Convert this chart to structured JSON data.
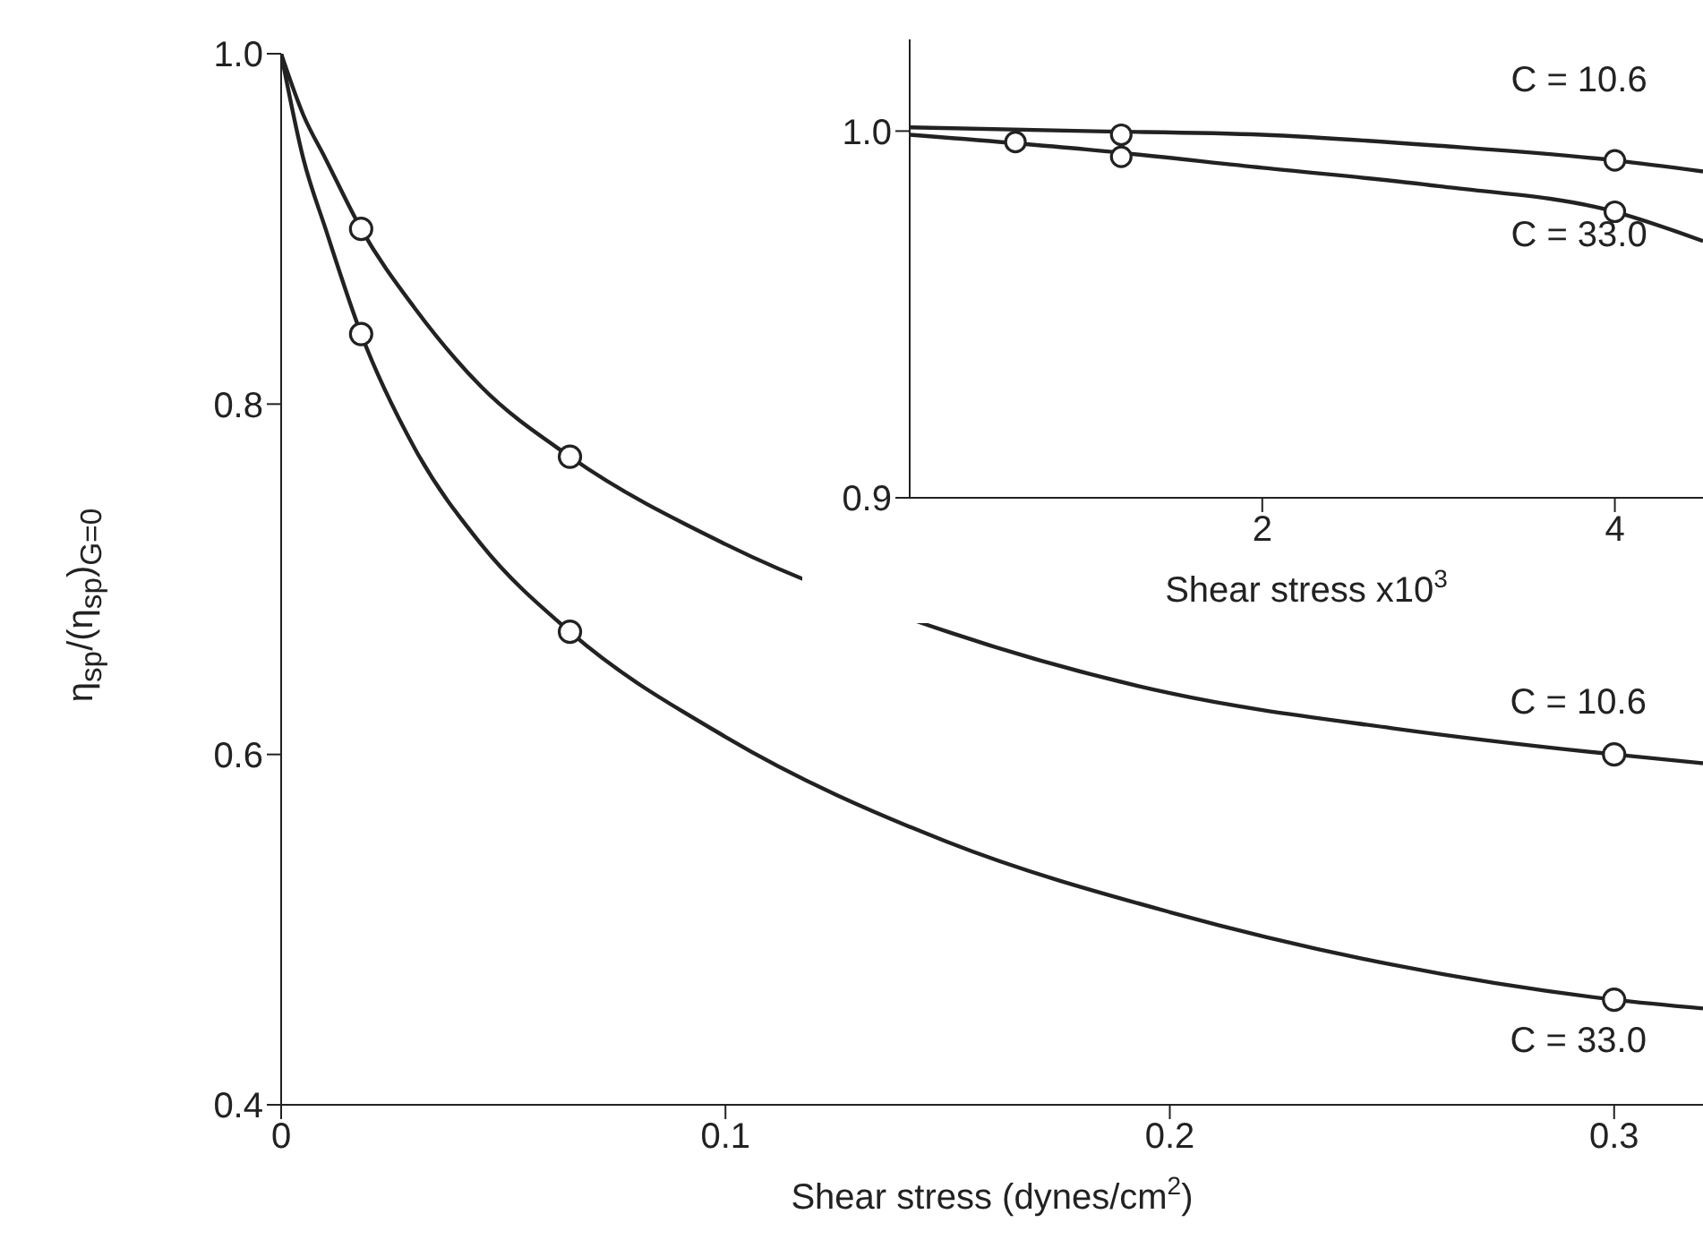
{
  "chart_data": [
    {
      "type": "line",
      "xlabel": "Shear stress (dynes/cm$^{2}$)",
      "ylabel": "η$_{sp}$/(η$_{sp}$)$_{G=0}$",
      "xlim": [
        0,
        0.32
      ],
      "xticks": [
        0,
        0.1,
        0.2,
        0.3
      ],
      "ylim": [
        0.4,
        1.0
      ],
      "yticks": [
        {
          "value": 0.4,
          "label": "0.4"
        },
        {
          "value": 0.6,
          "label": "0.6"
        },
        {
          "value": 0.8,
          "label": "0.8"
        },
        {
          "value": 1.0,
          "label": "1.0"
        }
      ],
      "series": [
        {
          "color": "#222222",
          "x": [
            0,
            0.005,
            0.01,
            0.018,
            0.03,
            0.045,
            0.065,
            0.1,
            0.15,
            0.2,
            0.25,
            0.3,
            0.32
          ],
          "values": [
            1.0,
            0.965,
            0.94,
            0.9,
            0.855,
            0.81,
            0.77,
            0.72,
            0.67,
            0.635,
            0.615,
            0.6,
            0.595
          ]
        },
        {
          "color": "#222222",
          "x": [
            0,
            0.005,
            0.01,
            0.018,
            0.03,
            0.045,
            0.065,
            0.1,
            0.15,
            0.2,
            0.25,
            0.3,
            0.32
          ],
          "values": [
            1.0,
            0.94,
            0.9,
            0.84,
            0.775,
            0.72,
            0.67,
            0.61,
            0.55,
            0.51,
            0.48,
            0.46,
            0.455
          ]
        },
        {
          "type": "scatter",
          "name": "C = 10.6",
          "color": "#222222",
          "marker": "circle",
          "x": [
            0.018,
            0.065,
            0.3
          ],
          "values": [
            0.9,
            0.77,
            0.6
          ]
        },
        {
          "type": "scatter",
          "name": "C = 33.0",
          "color": "#222222",
          "marker": "circle",
          "x": [
            0.018,
            0.065,
            0.3
          ],
          "values": [
            0.84,
            0.67,
            0.46
          ]
        }
      ]
    },
    {
      "type": "line",
      "xlabel": "Shear stress x10$^{3}$",
      "xlim": [
        0,
        4.5
      ],
      "xticks": [
        2,
        4
      ],
      "ylim": [
        0.9,
        1.025
      ],
      "yticks": [
        {
          "value": 0.9,
          "label": "0.9"
        },
        {
          "value": 1.0,
          "label": "1.0"
        }
      ],
      "series": [
        {
          "color": "#222222",
          "x": [
            0,
            1,
            2,
            3,
            4,
            4.5
          ],
          "values": [
            1.001,
            1.0,
            0.999,
            0.996,
            0.992,
            0.989
          ]
        },
        {
          "color": "#222222",
          "x": [
            0,
            1,
            2,
            3,
            4,
            4.5
          ],
          "values": [
            0.999,
            0.995,
            0.99,
            0.985,
            0.978,
            0.97
          ]
        },
        {
          "type": "scatter",
          "name": "C = 10.6",
          "color": "#222222",
          "marker": "circle",
          "x": [
            1.2,
            4.0
          ],
          "values": [
            0.999,
            0.992
          ]
        },
        {
          "type": "scatter",
          "name": "C = 33.0",
          "color": "#222222",
          "marker": "circle",
          "x": [
            0.6,
            1.2,
            4.0
          ],
          "values": [
            0.997,
            0.993,
            0.978
          ]
        }
      ]
    }
  ]
}
